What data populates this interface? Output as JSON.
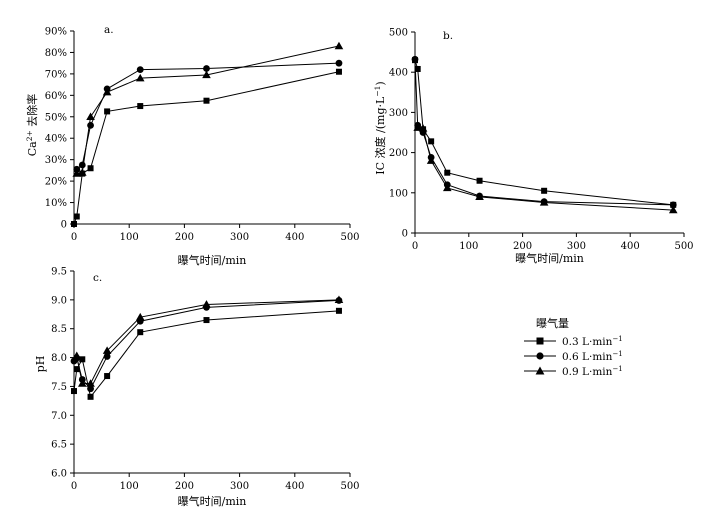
{
  "legend": {
    "title": "曝气量",
    "entries": [
      {
        "label": "0.3 L·min",
        "sup": "−1",
        "marker": "square"
      },
      {
        "label": "0.6 L·min",
        "sup": "−1",
        "marker": "circle"
      },
      {
        "label": "0.9 L·min",
        "sup": "−1",
        "marker": "triangle"
      }
    ]
  },
  "chart_data": [
    {
      "type": "line",
      "panel_label": "a.",
      "xlabel": "曝气时间/min",
      "ylabel_prefix": "Ca",
      "ylabel_sup": "2+",
      "ylabel_suffix": " 去除率",
      "xlim": [
        0,
        500
      ],
      "ylim": [
        0,
        90
      ],
      "xticks": [
        0,
        100,
        200,
        300,
        400,
        500
      ],
      "yticks": [
        0,
        10,
        20,
        30,
        40,
        50,
        60,
        70,
        80,
        90
      ],
      "ytick_labels": [
        "0",
        "10%",
        "20%",
        "30%",
        "40%",
        "50%",
        "60%",
        "70%",
        "80%",
        "90%"
      ],
      "series": [
        {
          "name": "0.3 L·min−1",
          "marker": "square",
          "x": [
            0,
            5,
            15,
            30,
            60,
            120,
            240,
            480
          ],
          "y": [
            0,
            3.5,
            23.5,
            26,
            52.5,
            55,
            57.5,
            71
          ]
        },
        {
          "name": "0.6 L·min−1",
          "marker": "circle",
          "x": [
            5,
            15,
            30,
            60,
            120,
            240,
            480
          ],
          "y": [
            25.5,
            27.5,
            46,
            63,
            72,
            72.5,
            75
          ]
        },
        {
          "name": "0.9 L·min−1",
          "marker": "triangle",
          "x": [
            5,
            15,
            30,
            60,
            120,
            240,
            480
          ],
          "y": [
            23.5,
            24,
            50,
            61.5,
            68,
            69.5,
            83
          ]
        }
      ]
    },
    {
      "type": "line",
      "panel_label": "b.",
      "xlabel": "曝气时间/min",
      "ylabel_prefix": "IC 浓度 /(mg·L",
      "ylabel_sup": "−1",
      "ylabel_suffix": ")",
      "xlim": [
        0,
        500
      ],
      "ylim": [
        0,
        500
      ],
      "xticks": [
        0,
        100,
        200,
        300,
        400,
        500
      ],
      "yticks": [
        0,
        100,
        200,
        300,
        400,
        500
      ],
      "ytick_labels": [
        "0",
        "100",
        "200",
        "300",
        "400",
        "500"
      ],
      "series": [
        {
          "name": "0.3 L·min−1",
          "marker": "square",
          "x": [
            0,
            5,
            15,
            30,
            60,
            120,
            240,
            480
          ],
          "y": [
            430,
            408,
            258,
            228,
            150,
            130,
            105,
            70
          ]
        },
        {
          "name": "0.6 L·min−1",
          "marker": "circle",
          "x": [
            0,
            5,
            15,
            30,
            60,
            120,
            240,
            480
          ],
          "y": [
            432,
            268,
            250,
            188,
            120,
            92,
            78,
            70
          ]
        },
        {
          "name": "0.9 L·min−1",
          "marker": "triangle",
          "x": [
            5,
            15,
            30,
            60,
            120,
            240,
            480
          ],
          "y": [
            262,
            260,
            180,
            112,
            90,
            76,
            57
          ]
        }
      ]
    },
    {
      "type": "line",
      "panel_label": "c.",
      "xlabel": "曝气时间/min",
      "ylabel_prefix": "pH",
      "ylabel_sup": "",
      "ylabel_suffix": "",
      "xlim": [
        0,
        500
      ],
      "ylim": [
        6.0,
        9.5
      ],
      "xticks": [
        0,
        100,
        200,
        300,
        400,
        500
      ],
      "yticks": [
        6.0,
        6.5,
        7.0,
        7.5,
        8.0,
        8.5,
        9.0,
        9.5
      ],
      "ytick_labels": [
        "6.0",
        "6.5",
        "7.0",
        "7.5",
        "8.0",
        "8.5",
        "9.0",
        "9.5"
      ],
      "series": [
        {
          "name": "0.3 L·min−1",
          "marker": "square",
          "x": [
            0,
            5,
            15,
            30,
            60,
            120,
            240,
            480
          ],
          "y": [
            7.42,
            7.8,
            7.97,
            7.32,
            7.68,
            8.44,
            8.65,
            8.81
          ]
        },
        {
          "name": "0.6 L·min−1",
          "marker": "circle",
          "x": [
            0,
            5,
            15,
            30,
            60,
            120,
            240,
            480
          ],
          "y": [
            7.94,
            7.99,
            7.62,
            7.46,
            8.02,
            8.63,
            8.87,
            8.99
          ]
        },
        {
          "name": "0.9 L·min−1",
          "marker": "triangle",
          "x": [
            5,
            15,
            30,
            60,
            120,
            240,
            480
          ],
          "y": [
            8.03,
            7.55,
            7.55,
            8.12,
            8.7,
            8.92,
            9.0
          ]
        }
      ]
    }
  ]
}
